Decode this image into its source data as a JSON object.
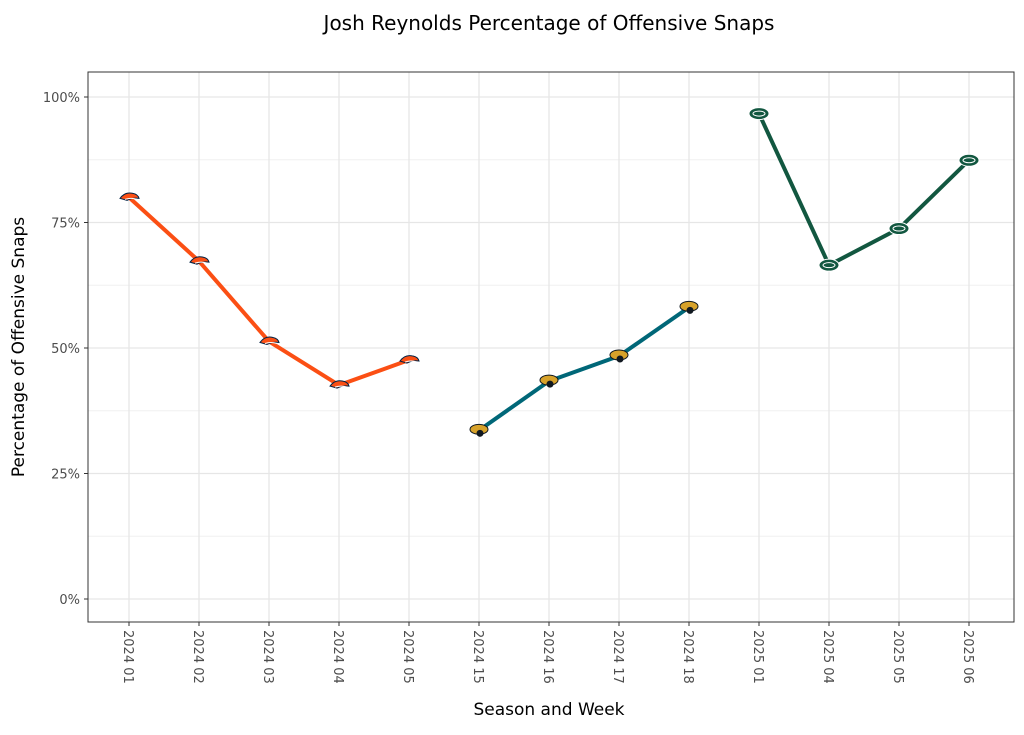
{
  "chart_data": {
    "type": "line",
    "title": "Josh Reynolds Percentage of Offensive Snaps",
    "xlabel": "Season and Week",
    "ylabel": "Percentage of Offensive Snaps",
    "ylim": [
      -0.045,
      1.05
    ],
    "yticks": [
      0,
      0.25,
      0.5,
      0.75,
      1.0
    ],
    "ytick_labels": [
      "0%",
      "25%",
      "50%",
      "75%",
      "100%"
    ],
    "categories": [
      "2024 01",
      "2024 02",
      "2024 03",
      "2024 04",
      "2024 05",
      "2024 15",
      "2024 16",
      "2024 17",
      "2024 18",
      "2025 01",
      "2025 04",
      "2025 05",
      "2025 06"
    ],
    "grid": true,
    "series": [
      {
        "name": "DEN",
        "color": "#FB4F14",
        "marker": "broncos-logo",
        "x": [
          "2024 01",
          "2024 02",
          "2024 03",
          "2024 04",
          "2024 05"
        ],
        "values": [
          0.8,
          0.673,
          0.513,
          0.426,
          0.476
        ]
      },
      {
        "name": "JAX",
        "color": "#006778",
        "marker": "jaguars-logo",
        "x": [
          "2024 15",
          "2024 16",
          "2024 17",
          "2024 18"
        ],
        "values": [
          0.336,
          0.434,
          0.484,
          0.581
        ]
      },
      {
        "name": "NYJ",
        "color": "#125740",
        "marker": "jets-logo",
        "x": [
          "2025 01",
          "2025 04",
          "2025 05",
          "2025 06"
        ],
        "values": [
          0.967,
          0.665,
          0.738,
          0.874
        ]
      }
    ]
  }
}
